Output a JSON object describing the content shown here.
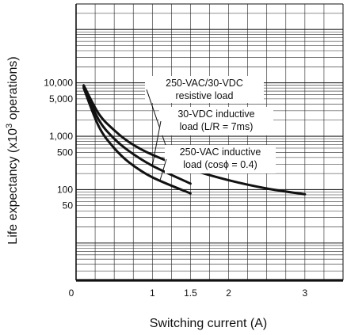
{
  "chart_data": {
    "type": "line",
    "title": "",
    "xlabel": "Switching current (A)",
    "ylabel": "Life expectancy (x10",
    "ylabel_sup": "3",
    "ylabel_suffix": " operations)",
    "x_scale": "linear",
    "y_scale": "log",
    "xlim": [
      0,
      3.5
    ],
    "ylim": [
      2,
      300000
    ],
    "x_ticks": [
      {
        "value": 0,
        "label": "0"
      },
      {
        "value": 1,
        "label": "1"
      },
      {
        "value": 1.5,
        "label": "1.5"
      },
      {
        "value": 2,
        "label": "2"
      },
      {
        "value": 3,
        "label": "3"
      }
    ],
    "y_ticks": [
      {
        "value": 10000,
        "label": "10,000"
      },
      {
        "value": 5000,
        "label": "5,000"
      },
      {
        "value": 1000,
        "label": "1,000"
      },
      {
        "value": 500,
        "label": "500"
      },
      {
        "value": 100,
        "label": "100"
      },
      {
        "value": 50,
        "label": "50"
      }
    ],
    "grid": true,
    "series": [
      {
        "name": "250-VAC/30-VDC resistive load",
        "x": [
          0.1,
          0.3,
          0.5,
          0.7,
          1.0,
          1.5,
          2.0,
          2.5,
          3.0
        ],
        "y": [
          9000,
          2600,
          1300,
          770,
          450,
          240,
          150,
          105,
          82
        ]
      },
      {
        "name": "30-VDC inductive load (L/R = 7ms)",
        "x": [
          0.1,
          0.3,
          0.5,
          0.7,
          1.0,
          1.5
        ],
        "y": [
          8500,
          2000,
          900,
          520,
          280,
          130
        ]
      },
      {
        "name": "250-VAC inductive load (cosϕ = 0.4)",
        "x": [
          0.1,
          0.3,
          0.5,
          0.7,
          1.0,
          1.5
        ],
        "y": [
          8000,
          1500,
          600,
          320,
          170,
          85
        ]
      }
    ],
    "annotations": [
      {
        "text": "250-VAC/30-VDC",
        "series": 0
      },
      {
        "text": "resistive load",
        "series": 0
      },
      {
        "text": "30-VDC inductive",
        "series": 1
      },
      {
        "text": "load (L/R = 7ms)",
        "series": 1
      },
      {
        "text": "250-VAC inductive",
        "series": 2
      },
      {
        "text": "load (cosϕ = 0.4)",
        "series": 2
      }
    ],
    "line_color": "#111111"
  }
}
